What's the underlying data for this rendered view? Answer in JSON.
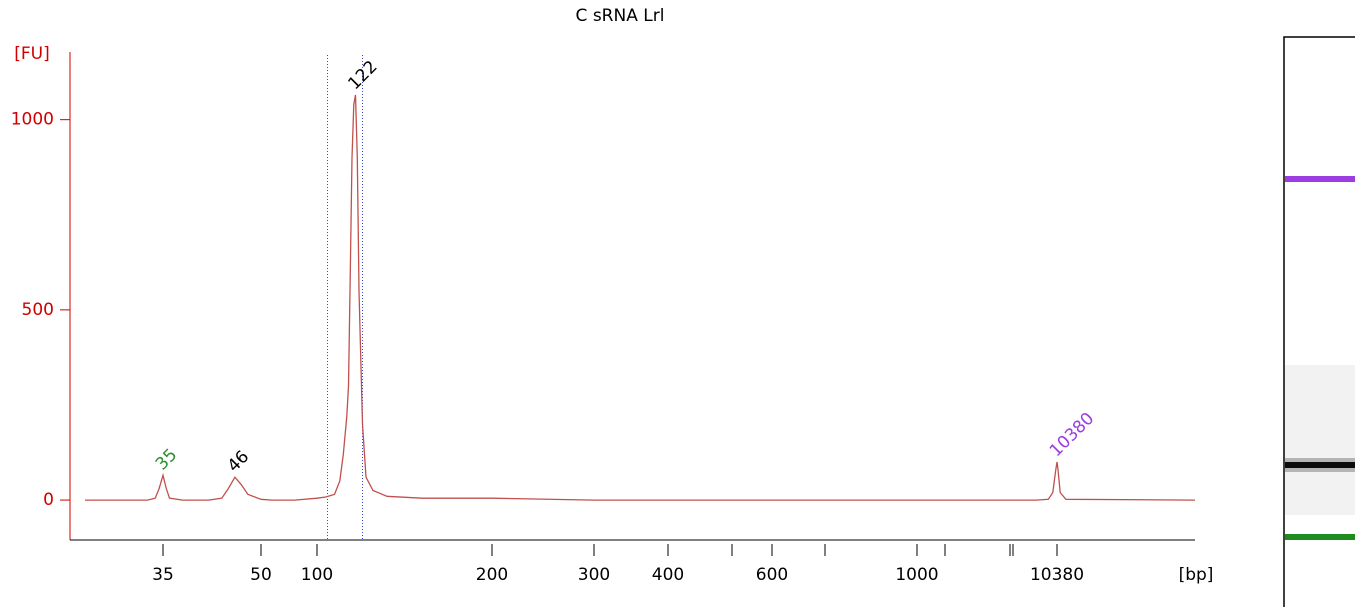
{
  "chart_data": {
    "type": "line",
    "title": "C sRNA Lrl",
    "x_label": "[bp]",
    "y_label": "[FU]",
    "x": [
      25,
      30,
      33,
      34,
      34.5,
      35,
      35.5,
      36,
      38,
      42,
      44,
      45,
      46,
      47,
      48,
      50,
      60,
      80,
      100,
      105,
      110,
      113,
      115,
      117,
      118,
      119,
      120,
      121,
      122,
      123,
      124,
      126,
      128,
      132,
      140,
      160,
      200,
      300,
      1000,
      9000,
      9800,
      10100,
      10300,
      10380,
      10450,
      10600,
      11000,
      20000
    ],
    "values": [
      0,
      0,
      0,
      5,
      30,
      65,
      30,
      5,
      0,
      0,
      5,
      30,
      60,
      40,
      15,
      2,
      0,
      0,
      5,
      8,
      15,
      50,
      120,
      220,
      300,
      600,
      900,
      1040,
      1065,
      900,
      550,
      200,
      60,
      25,
      10,
      5,
      5,
      0,
      0,
      0,
      2,
      20,
      80,
      100,
      80,
      20,
      2,
      0
    ],
    "color": "#c0504d",
    "xlim": [
      25,
      20000
    ],
    "xticks": [
      35,
      50,
      100,
      200,
      300,
      400,
      600,
      1000,
      10380
    ],
    "ylim": [
      -105,
      1170
    ],
    "yticks": [
      0,
      500,
      1000
    ],
    "region": [
      106,
      126
    ],
    "peaks": [
      {
        "label": "35",
        "x": 35,
        "y": 65,
        "color": "#2e8b2e"
      },
      {
        "label": "46",
        "x": 46,
        "y": 60,
        "color": "#000000"
      },
      {
        "label": "122",
        "x": 122,
        "y": 1065,
        "color": "#000000"
      },
      {
        "label": "10380",
        "x": 10380,
        "y": 100,
        "color": "#9b3de0"
      }
    ]
  }
}
